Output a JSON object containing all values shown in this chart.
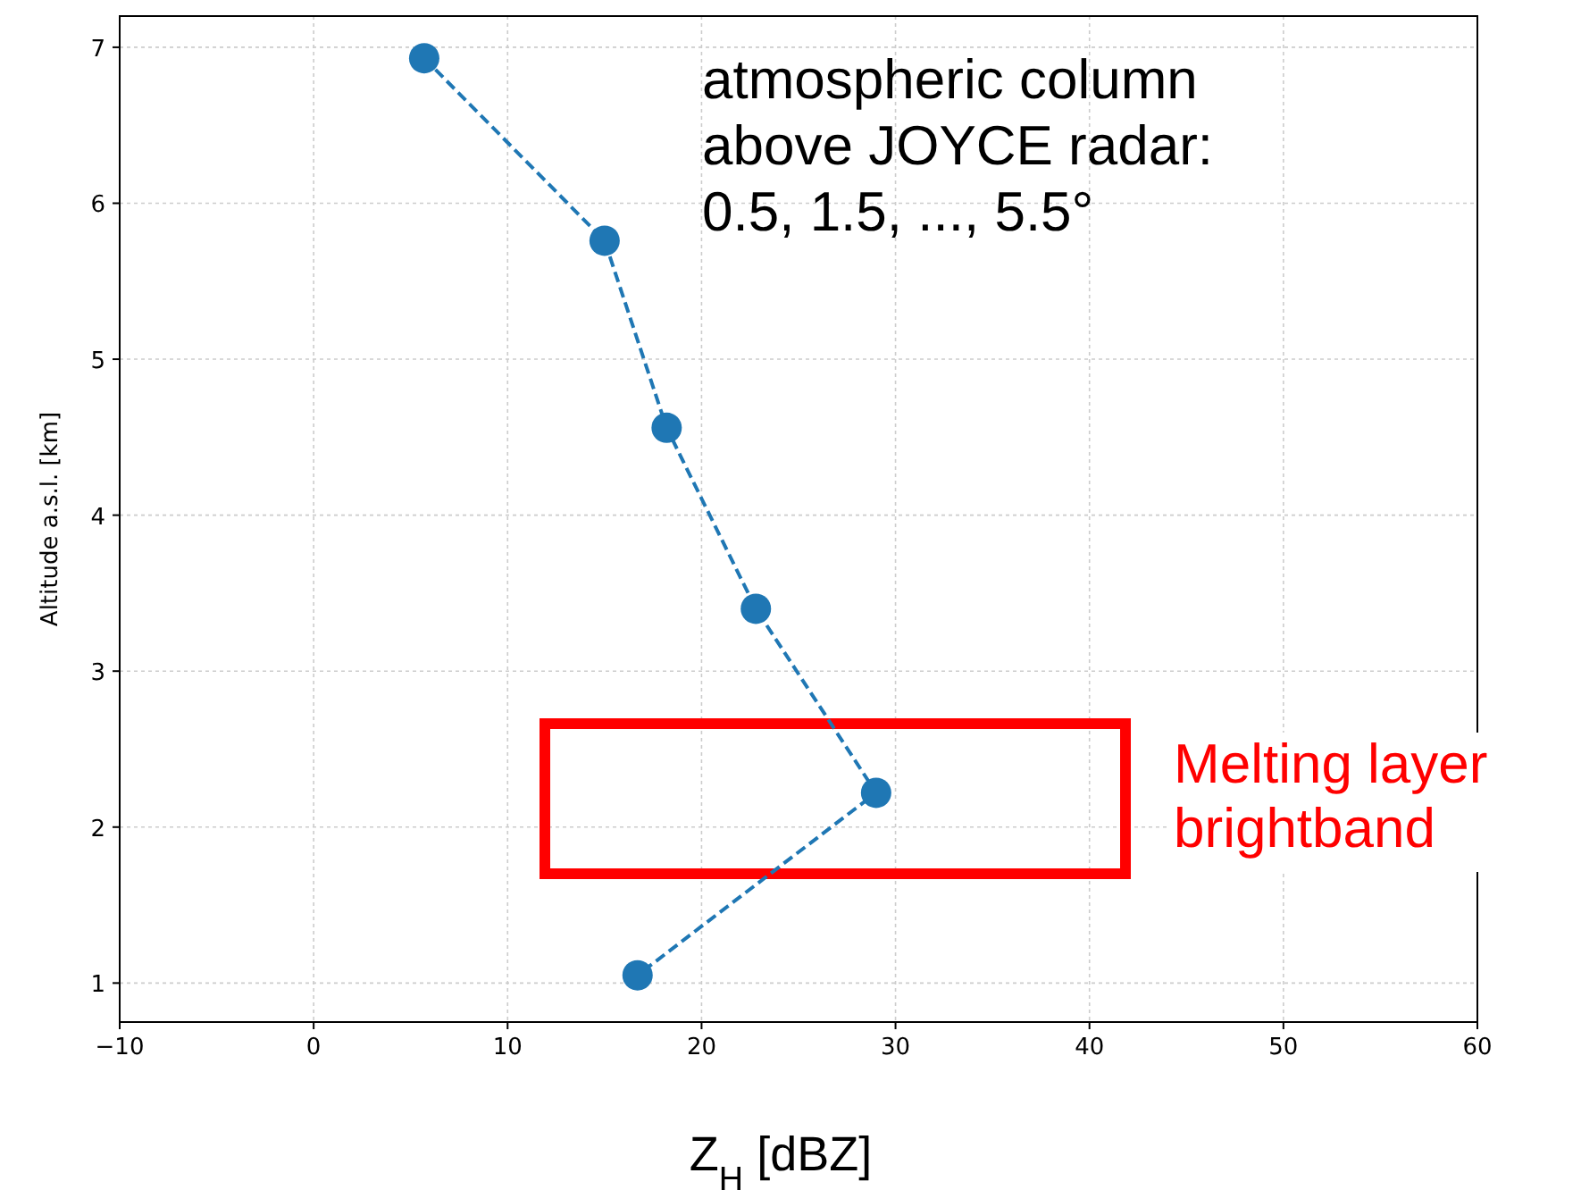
{
  "chart_data": {
    "type": "line",
    "xlabel": "Z$_{H}$ [dBZ]",
    "ylabel": "Altitude a.s.l. [km]",
    "annotations": [
      "atmospheric column\nabove JOYCE radar:\n0.5, 1.5, ..., 5.5°",
      "Melting layer\nbrightband"
    ],
    "series": [
      {
        "color": "#1f77b4",
        "x": [
          5.7,
          15.0,
          18.2,
          22.8,
          29.0,
          16.7
        ],
        "values": [
          6.93,
          5.76,
          4.56,
          3.4,
          2.22,
          1.05
        ]
      }
    ],
    "xlim": [
      -10,
      60
    ],
    "xticks": [
      {
        "value": -10,
        "label": "−10"
      },
      0,
      10,
      20,
      30,
      40,
      50,
      60
    ],
    "ylim": [
      0.75,
      7.2
    ],
    "yticks": [
      1,
      2,
      3,
      4,
      5,
      6,
      7
    ],
    "grid": true,
    "marker": "circle",
    "line_style": "dashed"
  }
}
